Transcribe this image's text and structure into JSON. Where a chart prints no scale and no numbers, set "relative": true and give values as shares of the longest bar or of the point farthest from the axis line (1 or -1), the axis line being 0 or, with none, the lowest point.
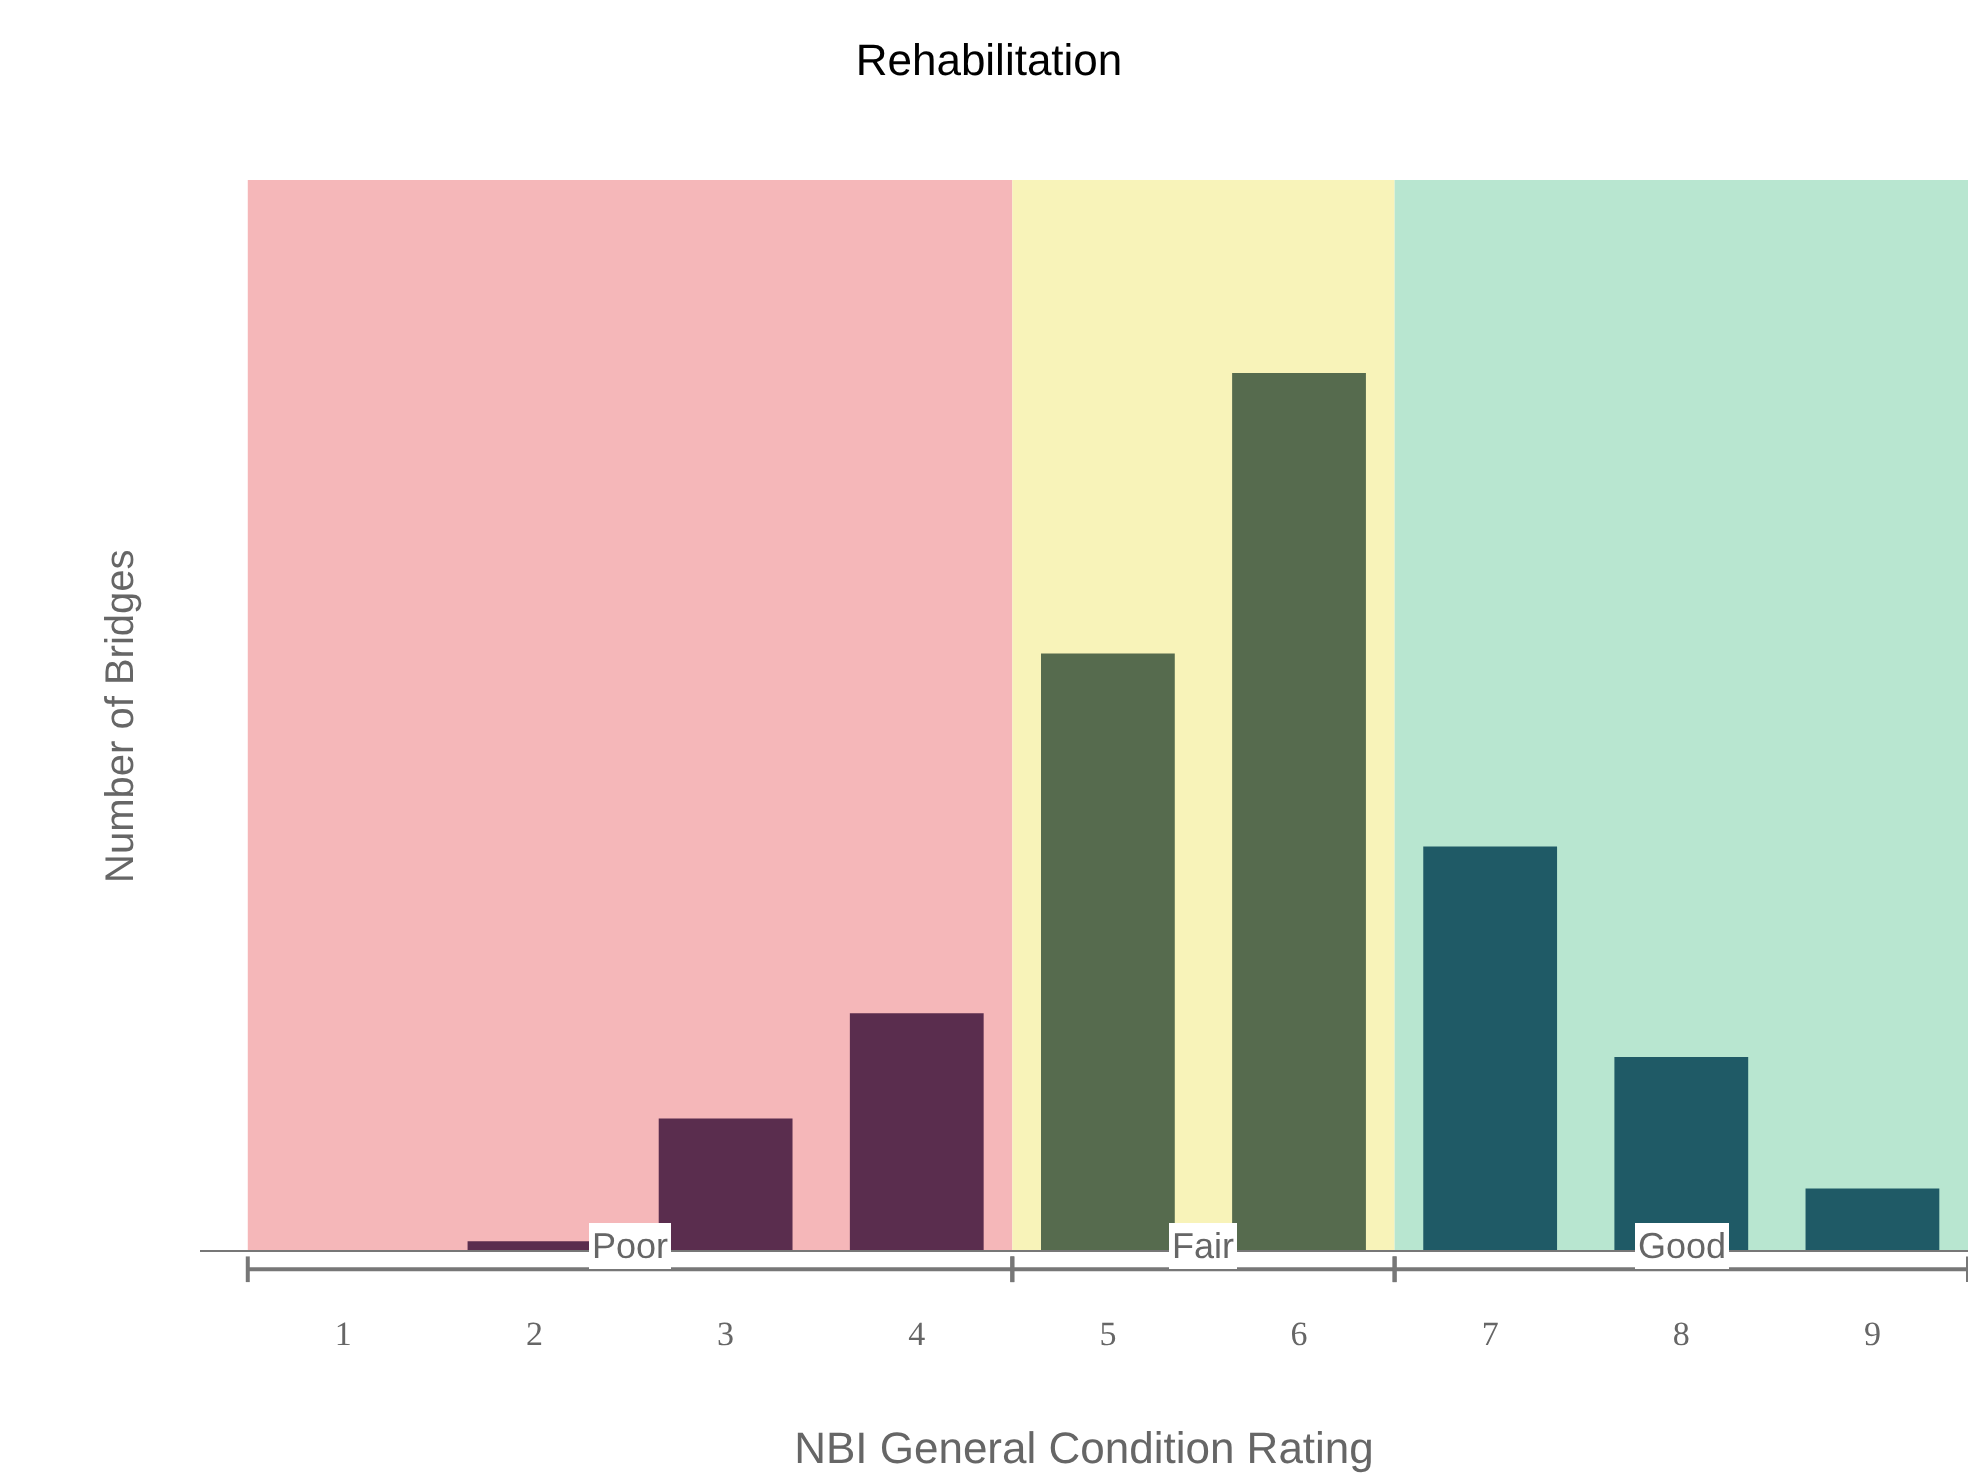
{
  "chart_data": {
    "type": "bar",
    "title": "Rehabilitation",
    "xlabel": "NBI General Condition Rating",
    "ylabel": "Number of Bridges",
    "categories": [
      "1",
      "2",
      "3",
      "4",
      "5",
      "6",
      "7",
      "8",
      "9"
    ],
    "values": [
      0,
      0.01,
      0.15,
      0.27,
      0.68,
      1,
      0.46,
      0.22,
      0.07
    ],
    "colors": [
      "#5a2d4e",
      "#5a2d4e",
      "#5a2d4e",
      "#5a2d4e",
      "#566b4e",
      "#566b4e",
      "#1f5a66",
      "#1f5a66",
      "#1f5a66"
    ],
    "relative": true,
    "grid": false,
    "bands": [
      {
        "axis": "x",
        "from": "1",
        "to": "4",
        "label": "Poor",
        "color": "#f5b7b9"
      },
      {
        "axis": "x",
        "from": "5",
        "to": "6",
        "label": "Fair",
        "color": "#f8f3b9"
      },
      {
        "axis": "x",
        "from": "7",
        "to": "9",
        "label": "Good",
        "color": "#b8e6d0"
      }
    ]
  }
}
